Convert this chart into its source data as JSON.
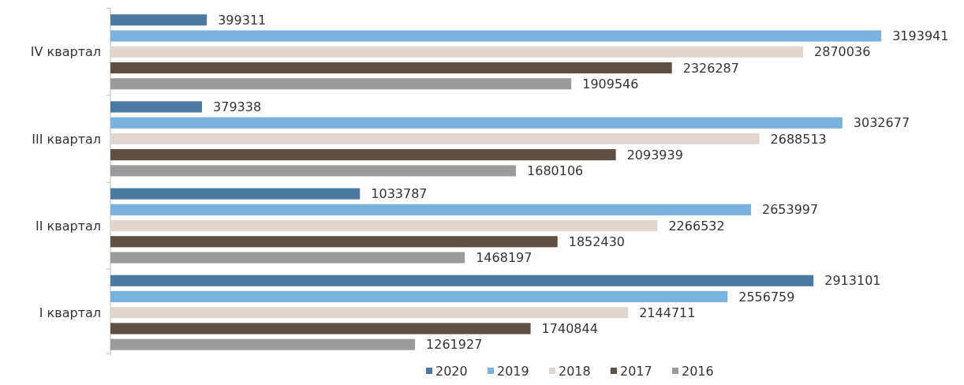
{
  "chart_data": {
    "type": "bar",
    "orientation": "horizontal",
    "categories": [
      "IV квартал",
      "III квартал",
      "II квартал",
      "I квартал"
    ],
    "series": [
      {
        "name": "2020",
        "color": "#4b79a1",
        "values": [
          399311,
          379338,
          1033787,
          2913101
        ]
      },
      {
        "name": "2019",
        "color": "#7bb1dd",
        "values": [
          3193941,
          3032677,
          2653997,
          2556759
        ]
      },
      {
        "name": "2018",
        "color": "#e1d6cd",
        "values": [
          2870036,
          2688513,
          2266532,
          2144711
        ]
      },
      {
        "name": "2017",
        "color": "#5f4f43",
        "values": [
          2326287,
          2093939,
          1852430,
          1740844
        ]
      },
      {
        "name": "2016",
        "color": "#9b9b9b",
        "values": [
          1909546,
          1680106,
          1468197,
          1261927
        ]
      }
    ],
    "tick_labels": "y",
    "data_labels": true,
    "legend": "bottom"
  }
}
